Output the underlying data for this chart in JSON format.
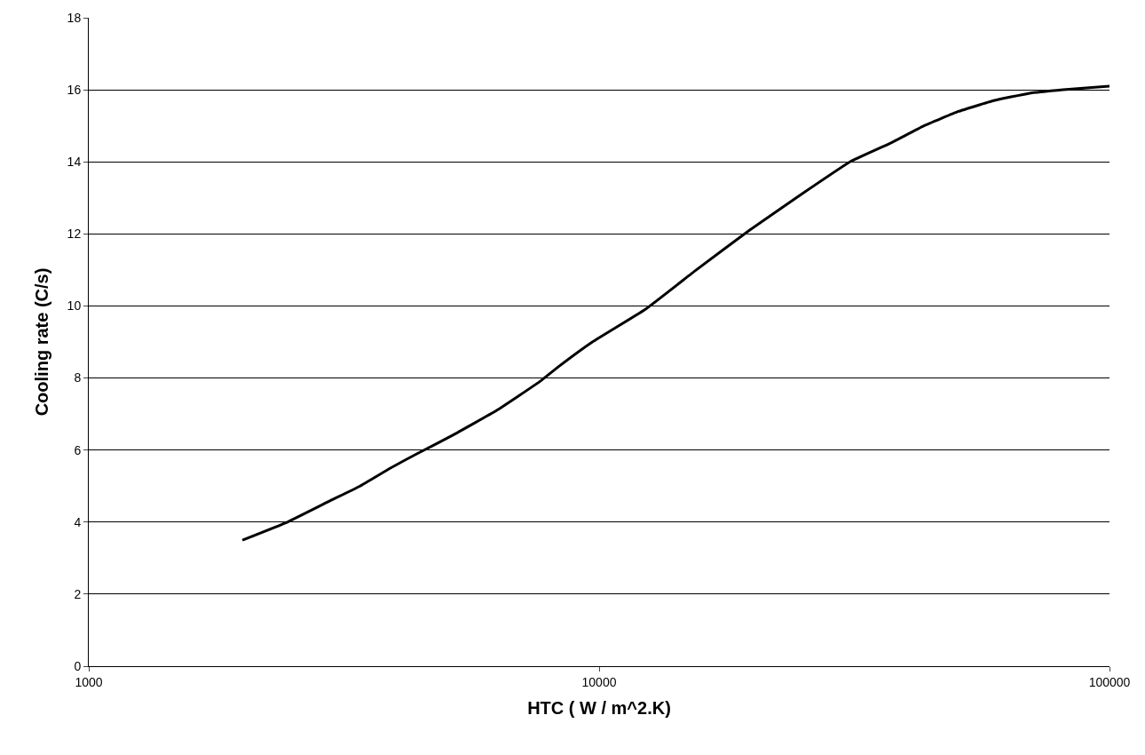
{
  "chart_data": {
    "type": "line",
    "xlabel": "HTC ( W / m^2.K)",
    "ylabel": "Cooling rate (C/s)",
    "log": "x",
    "x": [
      2000,
      2450,
      2980,
      3400,
      3900,
      4400,
      5150,
      6300,
      7650,
      8300,
      9700,
      12300,
      15500,
      19700,
      24900,
      31000,
      37000,
      43300,
      50600,
      59300,
      69400,
      81100,
      100000
    ],
    "series": [
      {
        "color": "#000000",
        "values": [
          3.5,
          4.0,
          4.6,
          5.0,
          5.5,
          5.9,
          6.4,
          7.1,
          7.9,
          8.3,
          9.0,
          9.9,
          11.0,
          12.1,
          13.1,
          14.0,
          14.5,
          15.0,
          15.4,
          15.7,
          15.9,
          16.0,
          16.1
        ]
      }
    ],
    "xlim": [
      1000,
      100000
    ],
    "xticks": [
      1000,
      10000,
      100000
    ],
    "ylim": [
      0,
      18
    ],
    "yticks": [
      0,
      2,
      4,
      6,
      8,
      10,
      12,
      14,
      16,
      18
    ],
    "grid": "y",
    "marker": "none",
    "line_style": "solid"
  }
}
